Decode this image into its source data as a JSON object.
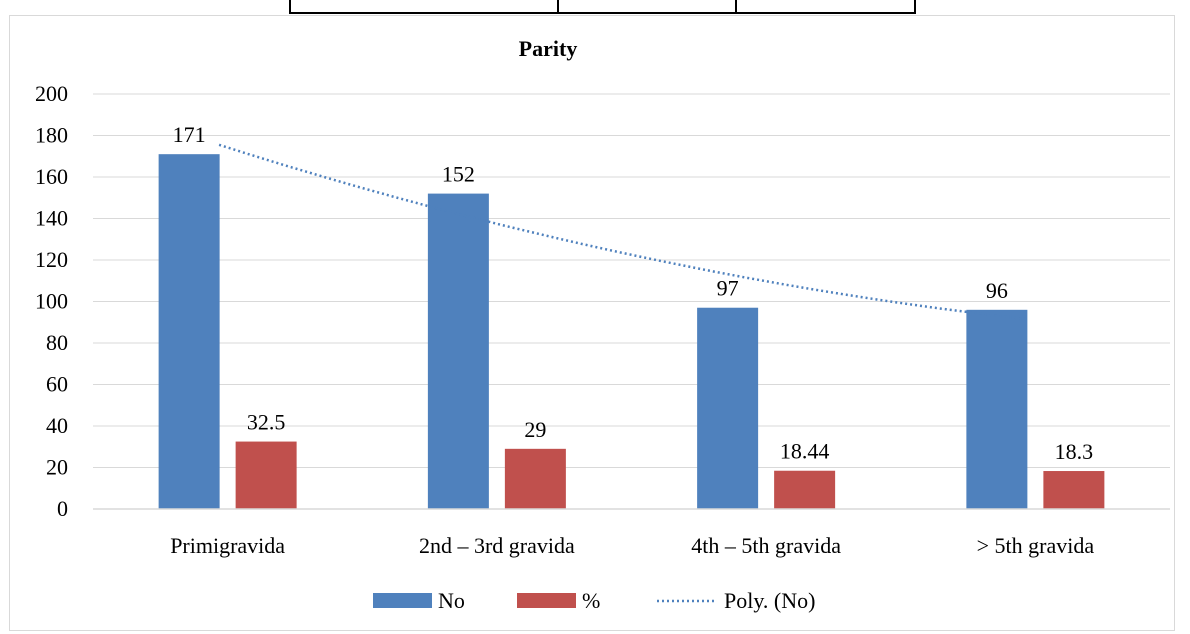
{
  "chart_data": {
    "type": "bar",
    "title": "Parity",
    "categories": [
      "Primigravida",
      "2nd – 3rd gravida",
      "4th – 5th gravida",
      "> 5th gravida"
    ],
    "series": [
      {
        "name": "No",
        "values": [
          171,
          152,
          97,
          96
        ],
        "labels": [
          "171",
          "152",
          "97",
          "96"
        ],
        "color": "#4f81bd"
      },
      {
        "name": "%",
        "values": [
          32.5,
          29,
          18.44,
          18.3
        ],
        "labels": [
          "32.5",
          "29",
          "18.44",
          "18.3"
        ],
        "color": "#c0504d"
      }
    ],
    "trendline": {
      "name": "Poly. (No)",
      "type": "polynomial",
      "of_series": "No",
      "color": "#4f81bd"
    },
    "ylim": [
      0,
      200
    ],
    "yticks": [
      0,
      20,
      40,
      60,
      80,
      100,
      120,
      140,
      160,
      180,
      200
    ],
    "grid": true,
    "legend": "bottom",
    "xlabel": "",
    "ylabel": ""
  }
}
